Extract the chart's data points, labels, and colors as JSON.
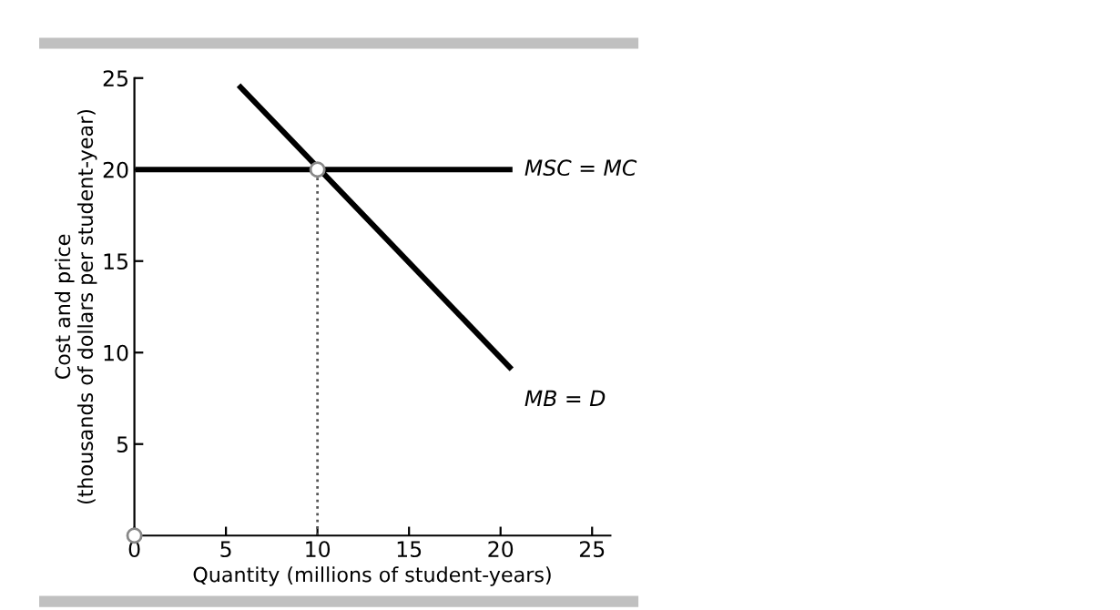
{
  "chart_data": {
    "type": "line",
    "xlabel": "Quantity (millions of student-years)",
    "ylabel": "Cost and price\n(thousands of dollars per student-year)",
    "xlim": [
      0,
      26
    ],
    "ylim": [
      0,
      25
    ],
    "xticks": [
      {
        "value": 0,
        "label": "0"
      },
      5,
      10,
      15,
      20,
      25
    ],
    "yticks": [
      5,
      10,
      15,
      20,
      25
    ],
    "grid": false,
    "legend": false,
    "series": [
      {
        "name": "MSC = MC",
        "color": "#000000",
        "x": [
          0.2,
          20.5
        ],
        "values": [
          20,
          20
        ]
      },
      {
        "name": "MB = D",
        "color": "#000000",
        "x": [
          5.8,
          20.5
        ],
        "values": [
          24.5,
          9.2
        ]
      },
      {
        "color": "#555555",
        "x": [
          10,
          10
        ],
        "values": [
          0,
          20
        ],
        "line_style": "dotted"
      },
      {
        "type": "scatter",
        "color": "#888888",
        "x": [
          10,
          0
        ],
        "values": [
          20,
          0
        ],
        "marker": "circle"
      }
    ]
  }
}
